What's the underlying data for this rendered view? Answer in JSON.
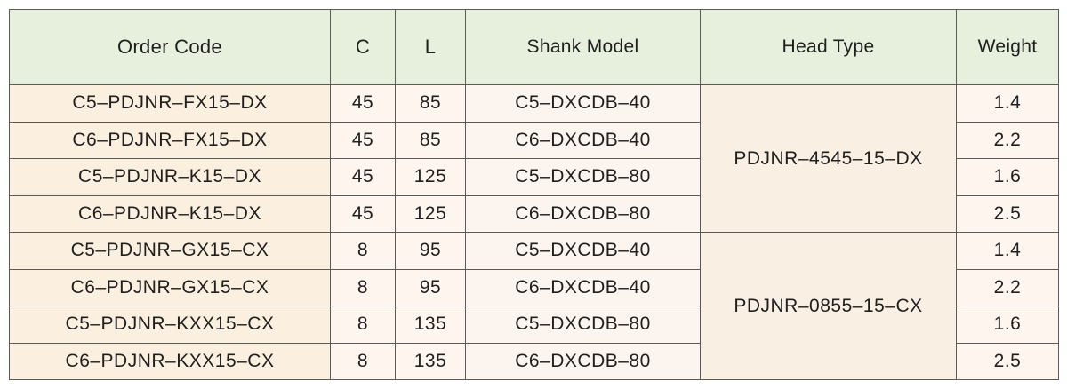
{
  "headers": {
    "order_code": "Order Code",
    "c": "C",
    "l": "L",
    "shank_model": "Shank Model",
    "head_type": "Head Type",
    "weight": "Weight"
  },
  "rows": [
    {
      "order_code": "C5–PDJNR–FX15–DX",
      "c": "45",
      "l": "85",
      "shank_model": "C5–DXCDB–40",
      "weight": "1.4"
    },
    {
      "order_code": "C6–PDJNR–FX15–DX",
      "c": "45",
      "l": "85",
      "shank_model": "C6–DXCDB–40",
      "weight": "2.2"
    },
    {
      "order_code": "C5–PDJNR–K15–DX",
      "c": "45",
      "l": "125",
      "shank_model": "C5–DXCDB–80",
      "weight": "1.6"
    },
    {
      "order_code": "C6–PDJNR–K15–DX",
      "c": "45",
      "l": "125",
      "shank_model": "C6–DXCDB–80",
      "weight": "2.5"
    },
    {
      "order_code": "C5–PDJNR–GX15–CX",
      "c": "8",
      "l": "95",
      "shank_model": "C5–DXCDB–40",
      "weight": "1.4"
    },
    {
      "order_code": "C6–PDJNR–GX15–CX",
      "c": "8",
      "l": "95",
      "shank_model": "C6–DXCDB–40",
      "weight": "2.2"
    },
    {
      "order_code": "C5–PDJNR–KXX15–CX",
      "c": "8",
      "l": "135",
      "shank_model": "C5–DXCDB–80",
      "weight": "1.6"
    },
    {
      "order_code": "C6–PDJNR–KXX15–CX",
      "c": "8",
      "l": "135",
      "shank_model": "C6–DXCDB–80",
      "weight": "2.5"
    }
  ],
  "head_groups": [
    {
      "head_type": "PDJNR–4545–15–DX"
    },
    {
      "head_type": "PDJNR–0855–15–CX"
    }
  ],
  "colors": {
    "header_bg": "#e6f0dc",
    "code_bg": "#fbf0df",
    "cell_bg": "#fdf5ee",
    "border": "#5a5a5a"
  }
}
